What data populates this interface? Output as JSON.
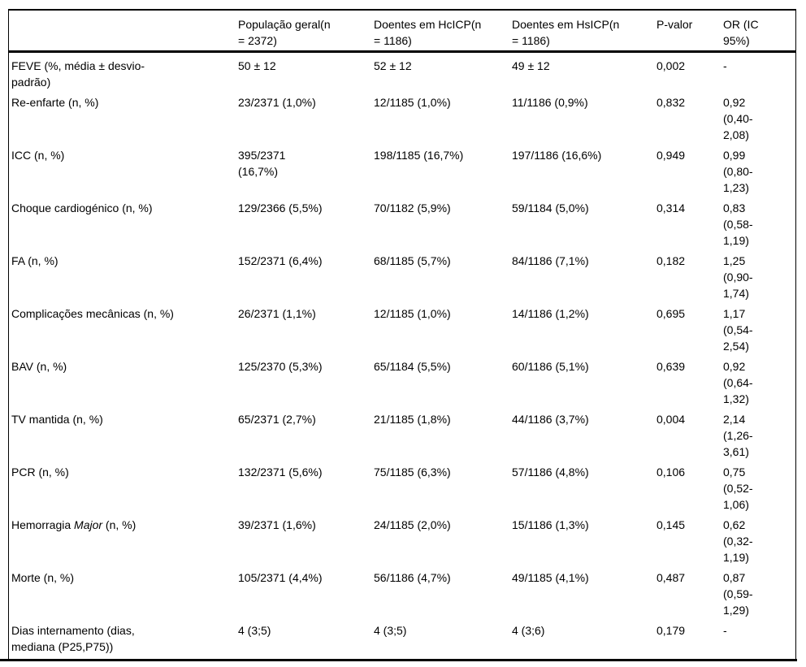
{
  "colors": {
    "background": "#ffffff",
    "text": "#000000",
    "rule": "#000000"
  },
  "table": {
    "header": [
      {
        "id": "row-label-blank",
        "lines": []
      },
      {
        "id": "populacao-geral",
        "lines": [
          "População geral(n",
          "= 2372)"
        ]
      },
      {
        "id": "doentes-hcicp",
        "lines": [
          "Doentes em HcICP(n",
          "= 1186)"
        ]
      },
      {
        "id": "doentes-hsicp",
        "lines": [
          "Doentes em HsICP(n",
          "= 1186)"
        ]
      },
      {
        "id": "p-valor",
        "lines": [
          "P-valor"
        ]
      },
      {
        "id": "or-ic-95",
        "lines": [
          "OR (IC",
          "95%)"
        ]
      }
    ],
    "rows": [
      {
        "label": [
          "FEVE (%, média ± desvio-",
          "padrão)"
        ],
        "pop": [
          "50 ± 12"
        ],
        "hcicp": [
          "52 ± 12"
        ],
        "hsicp": [
          "49 ± 12"
        ],
        "p": [
          "0,002"
        ],
        "or": [
          "-"
        ]
      },
      {
        "label": [
          "Re-enfarte (n, %)"
        ],
        "pop": [
          "23/2371 (1,0%)"
        ],
        "hcicp": [
          "12/1185 (1,0%)"
        ],
        "hsicp": [
          "11/1186 (0,9%)"
        ],
        "p": [
          "0,832"
        ],
        "or": [
          "0,92",
          "(0,40-",
          "2,08)"
        ]
      },
      {
        "label": [
          "ICC (n, %)"
        ],
        "pop": [
          "395/2371",
          "(16,7%)"
        ],
        "hcicp": [
          "198/1185 (16,7%)"
        ],
        "hsicp": [
          "197/1186 (16,6%)"
        ],
        "p": [
          "0,949"
        ],
        "or": [
          "0,99",
          "(0,80-",
          "1,23)"
        ]
      },
      {
        "label": [
          "Choque cardiogénico (n, %)"
        ],
        "pop": [
          "129/2366 (5,5%)"
        ],
        "hcicp": [
          "70/1182 (5,9%)"
        ],
        "hsicp": [
          "59/1184 (5,0%)"
        ],
        "p": [
          "0,314"
        ],
        "or": [
          "0,83",
          "(0,58-",
          "1,19)"
        ]
      },
      {
        "label": [
          "FA (n, %)"
        ],
        "pop": [
          "152/2371 (6,4%)"
        ],
        "hcicp": [
          "68/1185 (5,7%)"
        ],
        "hsicp": [
          "84/1186 (7,1%)"
        ],
        "p": [
          "0,182"
        ],
        "or": [
          "1,25",
          "(0,90-",
          "1,74)"
        ]
      },
      {
        "label": [
          "Complicações mecânicas (n, %)"
        ],
        "pop": [
          "26/2371 (1,1%)"
        ],
        "hcicp": [
          "12/1185 (1,0%)"
        ],
        "hsicp": [
          "14/1186 (1,2%)"
        ],
        "p": [
          "0,695"
        ],
        "or": [
          "1,17",
          "(0,54-",
          "2,54)"
        ]
      },
      {
        "label": [
          "BAV (n, %)"
        ],
        "pop": [
          "125/2370 (5,3%)"
        ],
        "hcicp": [
          "65/1184 (5,5%)"
        ],
        "hsicp": [
          "60/1186 (5,1%)"
        ],
        "p": [
          "0,639"
        ],
        "or": [
          "0,92",
          "(0,64-",
          "1,32)"
        ]
      },
      {
        "label": [
          "TV mantida (n, %)"
        ],
        "pop": [
          "65/2371 (2,7%)"
        ],
        "hcicp": [
          "21/1185 (1,8%)"
        ],
        "hsicp": [
          "44/1186 (3,7%)"
        ],
        "p": [
          "0,004"
        ],
        "or": [
          "2,14",
          "(1,26-",
          "3,61)"
        ]
      },
      {
        "label": [
          "PCR (n, %)"
        ],
        "pop": [
          "132/2371 (5,6%)"
        ],
        "hcicp": [
          "75/1185 (6,3%)"
        ],
        "hsicp": [
          "57/1186 (4,8%)"
        ],
        "p": [
          "0,106"
        ],
        "or": [
          "0,75",
          "(0,52-",
          "1,06)"
        ]
      },
      {
        "label": [
          [
            {
              "t": "Hemorragia "
            },
            {
              "t": "Major",
              "i": true
            },
            {
              "t": " (n, %)"
            }
          ]
        ],
        "pop": [
          "39/2371 (1,6%)"
        ],
        "hcicp": [
          "24/1185 (2,0%)"
        ],
        "hsicp": [
          "15/1186 (1,3%)"
        ],
        "p": [
          "0,145"
        ],
        "or": [
          "0,62",
          "(0,32-",
          "1,19)"
        ]
      },
      {
        "label": [
          "Morte (n, %)"
        ],
        "pop": [
          "105/2371 (4,4%)"
        ],
        "hcicp": [
          "56/1186 (4,7%)"
        ],
        "hsicp": [
          "49/1185 (4,1%)"
        ],
        "p": [
          "0,487"
        ],
        "or": [
          "0,87",
          "(0,59-",
          "1,29)"
        ]
      },
      {
        "label": [
          "Dias internamento (dias,",
          "mediana (P25,P75))"
        ],
        "pop": [
          "4 (3;5)"
        ],
        "hcicp": [
          "4 (3;5)"
        ],
        "hsicp": [
          "4 (3;6)"
        ],
        "p": [
          "0,179"
        ],
        "or": [
          "-"
        ]
      }
    ]
  }
}
